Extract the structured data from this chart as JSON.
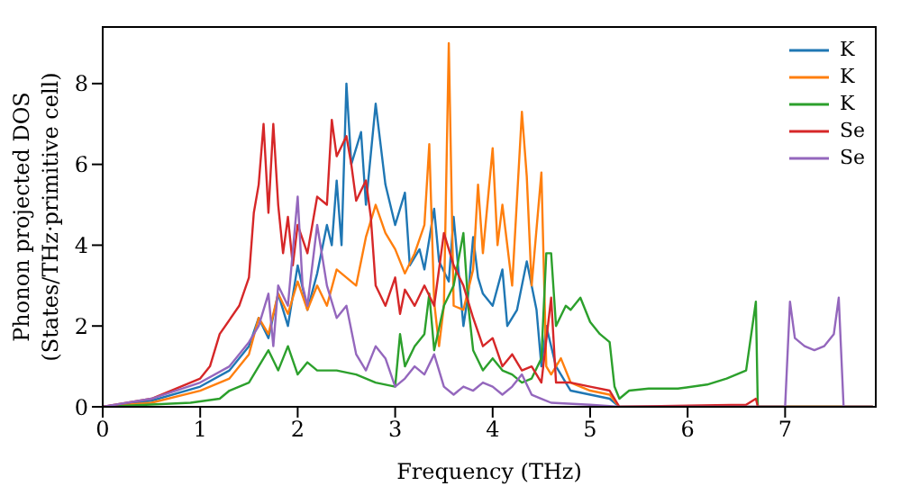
{
  "chart_data": {
    "type": "line",
    "xlabel": "Frequency (THz)",
    "ylabel": "Phonon projected DOS\n(States/THz·primitive cell)",
    "xlim": [
      0,
      7.93
    ],
    "ylim": [
      0,
      9.4
    ],
    "xticks": [
      0,
      1,
      2,
      3,
      4,
      5,
      6,
      7
    ],
    "yticks": [
      0,
      2,
      4,
      6,
      8
    ],
    "grid": false,
    "legend": "top right",
    "marker": "none",
    "line_style": "solid",
    "series": [
      {
        "name": "K",
        "color": "#1f77b4",
        "x": [
          0,
          0.5,
          1,
          1.3,
          1.5,
          1.6,
          1.7,
          1.8,
          1.9,
          2.0,
          2.1,
          2.2,
          2.3,
          2.35,
          2.4,
          2.45,
          2.5,
          2.55,
          2.65,
          2.7,
          2.8,
          2.9,
          3.0,
          3.1,
          3.15,
          3.25,
          3.3,
          3.4,
          3.45,
          3.55,
          3.6,
          3.7,
          3.75,
          3.8,
          3.85,
          3.9,
          4.0,
          4.1,
          4.15,
          4.25,
          4.35,
          4.45,
          4.5,
          4.55,
          4.65,
          4.7,
          4.8,
          5.0,
          5.2,
          5.3,
          7.9
        ],
        "values": [
          0,
          0.15,
          0.5,
          0.9,
          1.5,
          2.2,
          1.7,
          2.8,
          2.0,
          3.5,
          2.4,
          3.3,
          4.5,
          4.0,
          5.6,
          4.0,
          8.0,
          6.0,
          6.8,
          5.0,
          7.5,
          5.5,
          4.5,
          5.3,
          3.5,
          3.9,
          3.4,
          4.9,
          3.6,
          3.1,
          4.7,
          2.0,
          2.8,
          4.2,
          3.2,
          2.8,
          2.5,
          3.4,
          2.0,
          2.4,
          3.6,
          2.4,
          1.0,
          2.0,
          1.0,
          0.8,
          0.4,
          0.3,
          0.2,
          0,
          0
        ]
      },
      {
        "name": "K",
        "color": "#ff7f0e",
        "x": [
          0,
          0.5,
          1,
          1.3,
          1.5,
          1.6,
          1.7,
          1.8,
          1.9,
          2.0,
          2.1,
          2.2,
          2.3,
          2.4,
          2.5,
          2.6,
          2.7,
          2.8,
          2.9,
          3.0,
          3.1,
          3.2,
          3.3,
          3.35,
          3.4,
          3.45,
          3.5,
          3.55,
          3.6,
          3.7,
          3.8,
          3.85,
          3.9,
          4.0,
          4.05,
          4.1,
          4.2,
          4.3,
          4.35,
          4.4,
          4.5,
          4.55,
          4.6,
          4.7,
          4.8,
          5.0,
          5.2,
          5.3,
          7.9
        ],
        "values": [
          0,
          0.1,
          0.4,
          0.7,
          1.3,
          2.2,
          1.8,
          2.8,
          2.3,
          3.1,
          2.4,
          3.0,
          2.5,
          3.4,
          3.2,
          3.0,
          4.2,
          5.0,
          4.3,
          3.9,
          3.3,
          3.8,
          4.5,
          6.5,
          2.6,
          1.5,
          2.5,
          9.0,
          2.5,
          2.4,
          3.4,
          5.5,
          3.8,
          6.4,
          4.0,
          5.0,
          3.0,
          7.3,
          5.7,
          3.0,
          5.8,
          1.0,
          0.8,
          1.2,
          0.6,
          0.4,
          0.3,
          0,
          0
        ]
      },
      {
        "name": "K",
        "color": "#2ca02c",
        "x": [
          0,
          0.9,
          1.2,
          1.3,
          1.5,
          1.6,
          1.7,
          1.8,
          1.9,
          2.0,
          2.1,
          2.2,
          2.4,
          2.6,
          2.8,
          3.0,
          3.05,
          3.1,
          3.2,
          3.3,
          3.35,
          3.4,
          3.5,
          3.6,
          3.7,
          3.75,
          3.8,
          3.9,
          4.0,
          4.1,
          4.2,
          4.3,
          4.4,
          4.5,
          4.55,
          4.6,
          4.65,
          4.75,
          4.8,
          4.9,
          5.0,
          5.1,
          5.2,
          5.25,
          5.3,
          5.4,
          5.6,
          5.9,
          6.2,
          6.4,
          6.6,
          6.7,
          6.72,
          7.9
        ],
        "values": [
          0,
          0.1,
          0.2,
          0.4,
          0.6,
          1.0,
          1.4,
          0.9,
          1.5,
          0.8,
          1.1,
          0.9,
          0.9,
          0.8,
          0.6,
          0.5,
          1.8,
          1.0,
          1.5,
          1.8,
          2.8,
          1.4,
          2.5,
          3.0,
          4.3,
          2.5,
          1.4,
          0.9,
          1.2,
          0.9,
          0.8,
          0.6,
          0.7,
          1.2,
          3.8,
          3.8,
          2.0,
          2.5,
          2.4,
          2.7,
          2.1,
          1.8,
          1.6,
          0.5,
          0.2,
          0.4,
          0.45,
          0.45,
          0.55,
          0.7,
          0.9,
          2.6,
          0,
          0
        ]
      },
      {
        "name": "Se",
        "color": "#d62728",
        "x": [
          0,
          0.5,
          0.8,
          1.0,
          1.1,
          1.2,
          1.4,
          1.5,
          1.55,
          1.6,
          1.65,
          1.7,
          1.75,
          1.8,
          1.85,
          1.9,
          1.95,
          2.0,
          2.1,
          2.2,
          2.3,
          2.35,
          2.4,
          2.5,
          2.55,
          2.6,
          2.7,
          2.75,
          2.8,
          2.9,
          3.0,
          3.05,
          3.1,
          3.2,
          3.3,
          3.4,
          3.5,
          3.6,
          3.7,
          3.8,
          3.9,
          4.0,
          4.1,
          4.2,
          4.3,
          4.4,
          4.5,
          4.6,
          4.65,
          4.8,
          5.0,
          5.2,
          5.3,
          6.6,
          6.7,
          6.72,
          7.9
        ],
        "values": [
          0,
          0.2,
          0.5,
          0.7,
          1.0,
          1.8,
          2.5,
          3.2,
          4.8,
          5.5,
          7.0,
          4.8,
          7.0,
          5.0,
          3.8,
          4.7,
          3.5,
          4.5,
          3.8,
          5.2,
          5.0,
          7.1,
          6.2,
          6.7,
          6.0,
          5.1,
          5.6,
          4.7,
          3.0,
          2.5,
          3.2,
          2.3,
          2.9,
          2.5,
          3.0,
          2.5,
          4.3,
          3.5,
          3.0,
          2.2,
          1.5,
          1.7,
          1.0,
          1.3,
          0.9,
          1.0,
          0.6,
          2.7,
          0.6,
          0.6,
          0.5,
          0.4,
          0,
          0.05,
          0.2,
          0,
          0
        ]
      },
      {
        "name": "Se",
        "color": "#9467bd",
        "x": [
          0,
          0.5,
          1.0,
          1.3,
          1.5,
          1.6,
          1.7,
          1.75,
          1.8,
          1.9,
          2.0,
          2.05,
          2.1,
          2.2,
          2.3,
          2.4,
          2.5,
          2.6,
          2.7,
          2.8,
          2.9,
          3.0,
          3.1,
          3.2,
          3.3,
          3.4,
          3.5,
          3.6,
          3.7,
          3.8,
          3.9,
          4.0,
          4.1,
          4.2,
          4.3,
          4.4,
          4.5,
          4.6,
          5.0,
          5.3,
          7.0,
          7.05,
          7.1,
          7.2,
          7.3,
          7.4,
          7.5,
          7.55,
          7.6,
          7.9
        ],
        "values": [
          0,
          0.2,
          0.6,
          1.0,
          1.6,
          2.0,
          2.8,
          1.5,
          3.0,
          2.5,
          5.2,
          3.0,
          2.5,
          4.5,
          3.0,
          2.2,
          2.5,
          1.3,
          0.9,
          1.5,
          1.2,
          0.5,
          0.7,
          1.0,
          0.8,
          1.3,
          0.5,
          0.3,
          0.5,
          0.4,
          0.6,
          0.5,
          0.3,
          0.5,
          0.8,
          0.3,
          0.2,
          0.1,
          0.05,
          0,
          0,
          2.6,
          1.7,
          1.5,
          1.4,
          1.5,
          1.8,
          2.7,
          0,
          0
        ]
      }
    ]
  }
}
